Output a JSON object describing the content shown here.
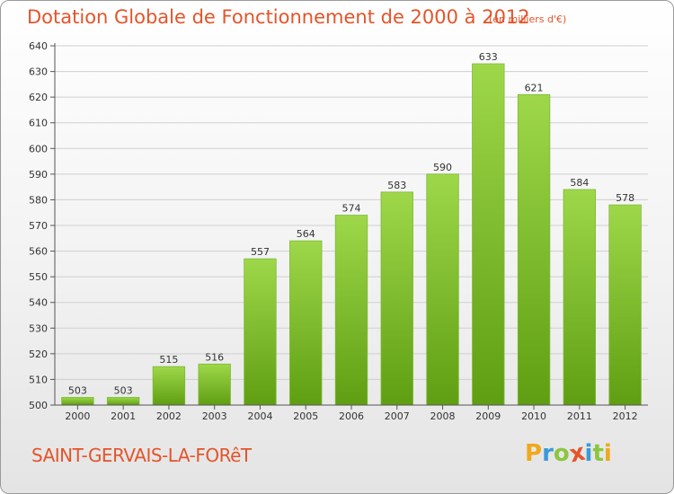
{
  "header": {
    "title": "Dotation Globale de Fonctionnement de 2000 à 2012",
    "unit": "(en milliers d'€)"
  },
  "footer": {
    "commune": "SAINT-GERVAIS-LA-FORêT",
    "logo_letters": [
      "P",
      "r",
      "o",
      "x",
      "i",
      "t",
      "i"
    ],
    "logo_colors": [
      "#f0a81c",
      "#3a9bd8",
      "#8cc63f",
      "#e4542a",
      "#3a9bd8",
      "#8cc63f",
      "#f0a81c"
    ]
  },
  "chart_data": {
    "type": "bar",
    "categories": [
      "2000",
      "2001",
      "2002",
      "2003",
      "2004",
      "2005",
      "2006",
      "2007",
      "2008",
      "2009",
      "2010",
      "2011",
      "2012"
    ],
    "values": [
      503,
      503,
      515,
      516,
      557,
      564,
      574,
      583,
      590,
      633,
      621,
      584,
      578
    ],
    "data_labels": [
      "503",
      "503",
      "515",
      "516",
      "557",
      "564",
      "574",
      "583",
      "590",
      "633",
      "621",
      "584",
      "578"
    ],
    "title": "Dotation Globale de Fonctionnement de 2000 à 2012",
    "xlabel": "",
    "ylabel": "",
    "ylim": [
      500,
      640
    ],
    "yticks": [
      500,
      510,
      520,
      530,
      540,
      550,
      560,
      570,
      580,
      590,
      600,
      610,
      620,
      630,
      640
    ],
    "grid": true,
    "colors": {
      "bar_light": "#9ed84a",
      "bar_dark": "#5f9e12",
      "axis": "#555555",
      "grid": "#cfcfcf"
    }
  }
}
